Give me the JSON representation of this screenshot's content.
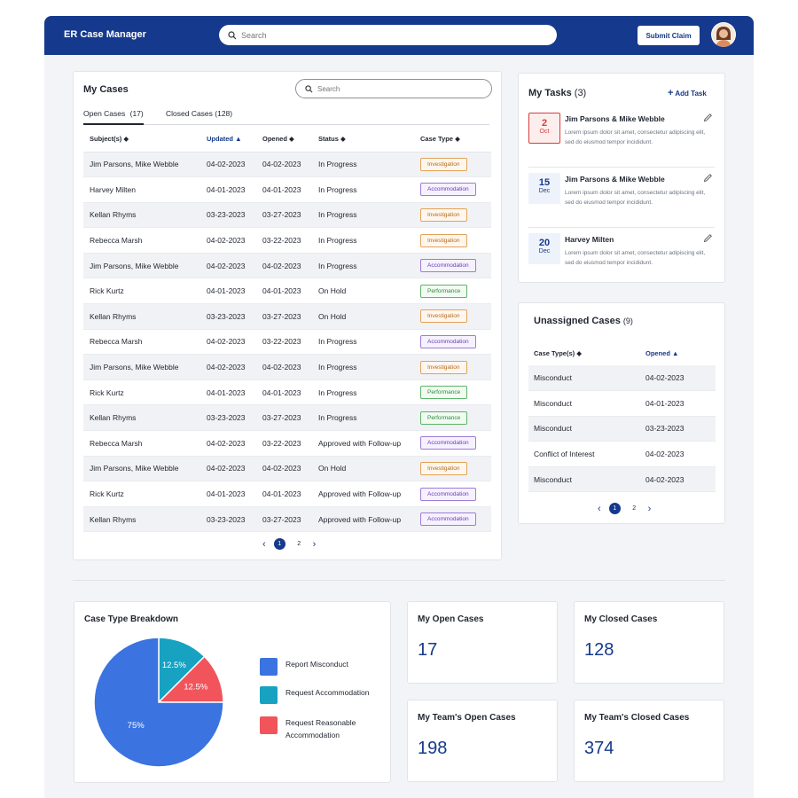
{
  "header": {
    "app_title": "ER Case Manager",
    "search_placeholder": "Search",
    "submit_label": "Submit Claim",
    "accent_color": "#15398c"
  },
  "my_cases": {
    "title": "My Cases",
    "search_placeholder": "Search",
    "tabs": [
      {
        "label": "Open Cases",
        "count": "(17)"
      },
      {
        "label": "Closed Cases (128)"
      }
    ],
    "columns": [
      "Subject(s)",
      "Updated",
      "Opened",
      "Status",
      "Case Type"
    ],
    "rows": [
      {
        "subject": "Jim Parsons, Mike Webble",
        "updated": "04-02-2023",
        "opened": "04-02-2023",
        "status": "In Progress",
        "type": "Investigation"
      },
      {
        "subject": "Harvey Milten",
        "updated": "04-01-2023",
        "opened": "04-01-2023",
        "status": "In Progress",
        "type": "Accommodation"
      },
      {
        "subject": "Kellan Rhyms",
        "updated": "03-23-2023",
        "opened": "03-27-2023",
        "status": "In Progress",
        "type": "Investigation"
      },
      {
        "subject": "Rebecca Marsh",
        "updated": "04-02-2023",
        "opened": "03-22-2023",
        "status": "In Progress",
        "type": "Investigation"
      },
      {
        "subject": "Jim Parsons, Mike Webble",
        "updated": "04-02-2023",
        "opened": "04-02-2023",
        "status": "In Progress",
        "type": "Accommodation"
      },
      {
        "subject": "Rick Kurtz",
        "updated": "04-01-2023",
        "opened": "04-01-2023",
        "status": "On Hold",
        "type": "Performance"
      },
      {
        "subject": "Kellan Rhyms",
        "updated": "03-23-2023",
        "opened": "03-27-2023",
        "status": "On Hold",
        "type": "Investigation"
      },
      {
        "subject": "Rebecca Marsh",
        "updated": "04-02-2023",
        "opened": "03-22-2023",
        "status": "In Progress",
        "type": "Accommodation"
      },
      {
        "subject": "Jim Parsons, Mike Webble",
        "updated": "04-02-2023",
        "opened": "04-02-2023",
        "status": "In Progress",
        "type": "Investigation"
      },
      {
        "subject": "Rick Kurtz",
        "updated": "04-01-2023",
        "opened": "04-01-2023",
        "status": "In Progress",
        "type": "Performance"
      },
      {
        "subject": "Kellan Rhyms",
        "updated": "03-23-2023",
        "opened": "03-27-2023",
        "status": "In Progress",
        "type": "Performance"
      },
      {
        "subject": "Rebecca Marsh",
        "updated": "04-02-2023",
        "opened": "03-22-2023",
        "status": "Approved with Follow-up",
        "type": "Accommodation"
      },
      {
        "subject": "Jim Parsons, Mike Webble",
        "updated": "04-02-2023",
        "opened": "04-02-2023",
        "status": "On Hold",
        "type": "Investigation"
      },
      {
        "subject": "Rick Kurtz",
        "updated": "04-01-2023",
        "opened": "04-01-2023",
        "status": "Approved with Follow-up",
        "type": "Accommodation"
      },
      {
        "subject": "Kellan Rhyms",
        "updated": "03-23-2023",
        "opened": "03-27-2023",
        "status": "Approved with Follow-up",
        "type": "Accommodation"
      }
    ],
    "pages": [
      "1",
      "2"
    ]
  },
  "tasks": {
    "title": "My Tasks",
    "count": "(3)",
    "add_label": "Add Task",
    "items": [
      {
        "day": "2",
        "month": "Oct",
        "name": "Jim Parsons & Mike Webble",
        "desc": "Lorem ipsum dolor sit amet, consectetur adipiscing elit, sed do eiusmod tempor incididunt.",
        "date_color": "#d83a3a",
        "date_bg": "#fdeeee"
      },
      {
        "day": "15",
        "month": "Dec",
        "name": "Jim Parsons & Mike Webble",
        "desc": "Lorem ipsum dolor sit amet, consectetur adipiscing elit, sed do eiusmod tempor incididunt.",
        "date_color": "#15398c",
        "date_bg": "#eef2fb"
      },
      {
        "day": "20",
        "month": "Dec",
        "name": "Harvey Milten",
        "desc": "Lorem ipsum dolor sit amet, consectetur adipiscing elit, sed do eiusmod tempor incididunt.",
        "date_color": "#15398c",
        "date_bg": "#eef2fb"
      }
    ]
  },
  "unassigned": {
    "title": "Unassigned Cases",
    "count": "(9)",
    "columns": [
      "Case Type(s)",
      "Opened"
    ],
    "rows": [
      {
        "type": "Misconduct",
        "opened": "04-02-2023"
      },
      {
        "type": "Misconduct",
        "opened": "04-01-2023"
      },
      {
        "type": "Misconduct",
        "opened": "03-23-2023"
      },
      {
        "type": "Conflict of Interest",
        "opened": "04-02-2023"
      },
      {
        "type": "Misconduct",
        "opened": "04-02-2023"
      }
    ],
    "pages": [
      "1",
      "2"
    ]
  },
  "breakdown": {
    "title": "Case Type Breakdown",
    "legend": [
      {
        "label": "Report Misconduct",
        "color": "#3b73e0"
      },
      {
        "label": "Request Accommodation",
        "color": "#17a2c1"
      },
      {
        "label": "Request Reasonable Accommodation",
        "color": "#f2545b"
      }
    ]
  },
  "chart_data": {
    "type": "pie",
    "categories": [
      "Report Misconduct",
      "Request Accommodation",
      "Request Reasonable Accommodation"
    ],
    "values": [
      75,
      12.5,
      12.5
    ],
    "labels": [
      "75%",
      "12.5%",
      "12.5%"
    ],
    "colors": [
      "#3b73e0",
      "#17a2c1",
      "#f2545b"
    ],
    "title": "Case Type Breakdown",
    "legend_position": "right"
  },
  "stats": [
    {
      "label": "My Open Cases",
      "value": "17"
    },
    {
      "label": "My Closed Cases",
      "value": "128"
    },
    {
      "label": "My Team's Open Cases",
      "value": "198"
    },
    {
      "label": "My Team's Closed Cases",
      "value": "374"
    }
  ]
}
